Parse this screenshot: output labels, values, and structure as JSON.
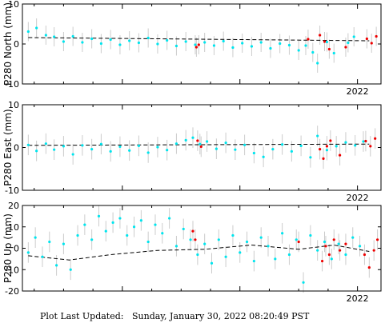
{
  "colors": {
    "normal_points": "#00e5ee",
    "recent_points": "#ee0000",
    "error_bars": "#cccccc",
    "trend": "#000000"
  },
  "footer": {
    "label": "Plot Last Updated:",
    "datetime": "Sunday, January 30, 2022 08:20:49 PST"
  },
  "chart_data": [
    {
      "type": "scatter",
      "ylabel": "P280 North (mm)",
      "ylim": [
        -10,
        10
      ],
      "yticks": [
        10,
        0,
        -10
      ],
      "xlim": [
        2019.15,
        2022.2
      ],
      "x_tick_label": "2022",
      "x_tick_value": 2022.0,
      "trend": [
        [
          2019.2,
          1.6
        ],
        [
          2022.1,
          0.8
        ]
      ],
      "series": [
        {
          "values": [
            [
              2019.2,
              3.1
            ],
            [
              2019.27,
              4.0
            ],
            [
              2019.35,
              2.2
            ],
            [
              2019.42,
              1.8
            ],
            [
              2019.5,
              0.6
            ],
            [
              2019.58,
              1.9
            ],
            [
              2019.66,
              0.4
            ],
            [
              2019.74,
              1.3
            ],
            [
              2019.82,
              0.1
            ],
            [
              2019.9,
              1.1
            ],
            [
              2019.98,
              -0.2
            ],
            [
              2020.06,
              0.8
            ],
            [
              2020.14,
              0.3
            ],
            [
              2020.22,
              1.5
            ],
            [
              2020.3,
              0.0
            ],
            [
              2020.38,
              0.9
            ],
            [
              2020.46,
              -0.5
            ],
            [
              2020.54,
              0.6
            ],
            [
              2020.62,
              -0.2
            ],
            [
              2020.7,
              0.4
            ],
            [
              2020.78,
              -0.4
            ],
            [
              2020.86,
              0.7
            ],
            [
              2020.94,
              -0.9
            ],
            [
              2021.02,
              0.2
            ],
            [
              2021.1,
              -0.6
            ],
            [
              2021.18,
              0.4
            ],
            [
              2021.26,
              -1.1
            ],
            [
              2021.34,
              0.1
            ],
            [
              2021.42,
              -0.3
            ],
            [
              2021.5,
              -1.6
            ],
            [
              2021.56,
              -0.4
            ],
            [
              2021.62,
              -2.1
            ],
            [
              2021.66,
              -4.8
            ],
            [
              2021.74,
              0.5
            ],
            [
              2021.8,
              -2.3
            ],
            [
              2021.92,
              0.3
            ],
            [
              2021.97,
              1.8
            ]
          ]
        },
        {
          "values": [
            [
              2020.63,
              -0.8
            ],
            [
              2020.65,
              -0.2
            ],
            [
              2021.58,
              1.2
            ],
            [
              2021.68,
              2.2
            ],
            [
              2021.72,
              0.6
            ],
            [
              2021.76,
              -1.3
            ],
            [
              2021.9,
              -0.8
            ],
            [
              2022.08,
              1.3
            ],
            [
              2022.12,
              0.2
            ],
            [
              2022.16,
              1.9
            ]
          ]
        }
      ]
    },
    {
      "type": "scatter",
      "ylabel": "P280 East (mm)",
      "ylim": [
        -10,
        10
      ],
      "yticks": [
        10,
        0,
        -10
      ],
      "xlim": [
        2019.15,
        2022.2
      ],
      "x_tick_label": "2022",
      "x_tick_value": 2022.0,
      "trend": [
        [
          2019.2,
          0.5
        ],
        [
          2022.1,
          0.8
        ]
      ],
      "series": [
        {
          "values": [
            [
              2019.2,
              0.6
            ],
            [
              2019.27,
              -0.8
            ],
            [
              2019.35,
              0.9
            ],
            [
              2019.42,
              -0.5
            ],
            [
              2019.5,
              0.3
            ],
            [
              2019.58,
              -1.6
            ],
            [
              2019.66,
              0.5
            ],
            [
              2019.74,
              -0.4
            ],
            [
              2019.82,
              0.8
            ],
            [
              2019.9,
              -0.9
            ],
            [
              2019.98,
              0.2
            ],
            [
              2020.06,
              -0.7
            ],
            [
              2020.14,
              0.4
            ],
            [
              2020.22,
              -1.2
            ],
            [
              2020.3,
              0.1
            ],
            [
              2020.38,
              -0.6
            ],
            [
              2020.46,
              0.9
            ],
            [
              2020.54,
              1.7
            ],
            [
              2020.6,
              2.3
            ],
            [
              2020.66,
              0.8
            ],
            [
              2020.72,
              1.4
            ],
            [
              2020.8,
              -0.3
            ],
            [
              2020.88,
              1.1
            ],
            [
              2020.96,
              -0.5
            ],
            [
              2021.04,
              0.6
            ],
            [
              2021.12,
              -1.3
            ],
            [
              2021.2,
              -2.2
            ],
            [
              2021.28,
              -0.4
            ],
            [
              2021.36,
              0.7
            ],
            [
              2021.44,
              -0.9
            ],
            [
              2021.52,
              0.4
            ],
            [
              2021.6,
              -2.3
            ],
            [
              2021.66,
              2.7
            ],
            [
              2021.74,
              -0.6
            ],
            [
              2021.82,
              0.3
            ],
            [
              2021.9,
              1.2
            ],
            [
              2021.98,
              0.5
            ],
            [
              2022.05,
              1.4
            ]
          ]
        },
        {
          "values": [
            [
              2020.64,
              1.6
            ],
            [
              2020.67,
              0.2
            ],
            [
              2021.68,
              -0.4
            ],
            [
              2021.71,
              -2.6
            ],
            [
              2021.74,
              0.3
            ],
            [
              2021.77,
              1.6
            ],
            [
              2021.85,
              -1.8
            ],
            [
              2022.07,
              1.5
            ],
            [
              2022.11,
              0.3
            ],
            [
              2022.15,
              2.1
            ]
          ]
        }
      ]
    },
    {
      "type": "scatter",
      "ylabel": "P280 Up (mm)",
      "ylim": [
        -20,
        20
      ],
      "yticks": [
        20,
        10,
        0,
        -10,
        -20
      ],
      "xlim": [
        2019.15,
        2022.2
      ],
      "x_tick_label": "2022",
      "x_tick_value": 2022.0,
      "trend": [
        [
          2019.2,
          -3.5
        ],
        [
          2019.55,
          -5.5
        ],
        [
          2019.9,
          -3.0
        ],
        [
          2020.3,
          -1.0
        ],
        [
          2020.7,
          -0.5
        ],
        [
          2021.1,
          1.5
        ],
        [
          2021.5,
          -0.5
        ],
        [
          2021.8,
          1.5
        ],
        [
          2022.1,
          -1.5
        ]
      ],
      "series": [
        {
          "values": [
            [
              2019.2,
              -2
            ],
            [
              2019.26,
              5
            ],
            [
              2019.32,
              -4
            ],
            [
              2019.38,
              3
            ],
            [
              2019.44,
              -8
            ],
            [
              2019.5,
              2
            ],
            [
              2019.56,
              -10
            ],
            [
              2019.62,
              6
            ],
            [
              2019.68,
              11
            ],
            [
              2019.74,
              4
            ],
            [
              2019.8,
              15
            ],
            [
              2019.86,
              8
            ],
            [
              2019.92,
              12
            ],
            [
              2019.98,
              14
            ],
            [
              2020.04,
              6
            ],
            [
              2020.1,
              10
            ],
            [
              2020.16,
              13
            ],
            [
              2020.22,
              3
            ],
            [
              2020.28,
              11
            ],
            [
              2020.34,
              7
            ],
            [
              2020.4,
              14
            ],
            [
              2020.46,
              1
            ],
            [
              2020.52,
              9
            ],
            [
              2020.58,
              4
            ],
            [
              2020.64,
              -3
            ],
            [
              2020.7,
              2
            ],
            [
              2020.76,
              -7
            ],
            [
              2020.82,
              4
            ],
            [
              2020.88,
              -4
            ],
            [
              2020.94,
              6
            ],
            [
              2021.0,
              -2
            ],
            [
              2021.06,
              3
            ],
            [
              2021.12,
              -6
            ],
            [
              2021.18,
              5
            ],
            [
              2021.24,
              1
            ],
            [
              2021.3,
              -5
            ],
            [
              2021.36,
              7
            ],
            [
              2021.42,
              -3
            ],
            [
              2021.48,
              4
            ],
            [
              2021.54,
              -16
            ],
            [
              2021.6,
              6
            ],
            [
              2021.66,
              -1
            ],
            [
              2021.72,
              3
            ],
            [
              2021.78,
              -5
            ],
            [
              2021.84,
              2
            ],
            [
              2021.9,
              -3
            ],
            [
              2021.96,
              5
            ],
            [
              2022.02,
              1
            ]
          ]
        },
        {
          "values": [
            [
              2020.6,
              8
            ],
            [
              2020.62,
              4
            ],
            [
              2021.5,
              3
            ],
            [
              2021.7,
              -6
            ],
            [
              2021.73,
              1
            ],
            [
              2021.76,
              -3
            ],
            [
              2021.8,
              4
            ],
            [
              2021.85,
              -1
            ],
            [
              2021.9,
              2
            ],
            [
              2022.06,
              -3
            ],
            [
              2022.1,
              -9
            ],
            [
              2022.14,
              -1
            ],
            [
              2022.17,
              4
            ]
          ]
        }
      ]
    }
  ]
}
